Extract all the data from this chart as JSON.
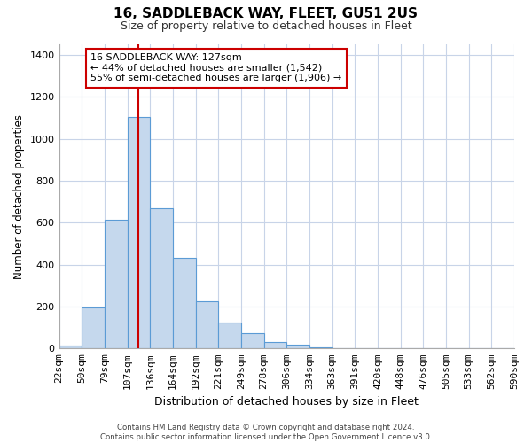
{
  "title": "16, SADDLEBACK WAY, FLEET, GU51 2US",
  "subtitle": "Size of property relative to detached houses in Fleet",
  "xlabel": "Distribution of detached houses by size in Fleet",
  "ylabel": "Number of detached properties",
  "bin_labels": [
    "22sqm",
    "50sqm",
    "79sqm",
    "107sqm",
    "136sqm",
    "164sqm",
    "192sqm",
    "221sqm",
    "249sqm",
    "278sqm",
    "306sqm",
    "334sqm",
    "363sqm",
    "391sqm",
    "420sqm",
    "448sqm",
    "476sqm",
    "505sqm",
    "533sqm",
    "562sqm",
    "590sqm"
  ],
  "bar_heights": [
    15,
    195,
    615,
    1105,
    670,
    430,
    225,
    125,
    75,
    30,
    20,
    5,
    2,
    0,
    0,
    0,
    0,
    0,
    0,
    0
  ],
  "bar_color": "#c5d8ed",
  "bar_edge_color": "#5b9bd5",
  "vline_color": "#cc0000",
  "vline_x": 3.5,
  "annotation_title": "16 SADDLEBACK WAY: 127sqm",
  "annotation_line1": "← 44% of detached houses are smaller (1,542)",
  "annotation_line2": "55% of semi-detached houses are larger (1,906) →",
  "ylim": [
    0,
    1450
  ],
  "yticks": [
    0,
    200,
    400,
    600,
    800,
    1000,
    1200,
    1400
  ],
  "footer_line1": "Contains HM Land Registry data © Crown copyright and database right 2024.",
  "footer_line2": "Contains public sector information licensed under the Open Government Licence v3.0.",
  "background_color": "#ffffff",
  "grid_color": "#c8d4e8"
}
